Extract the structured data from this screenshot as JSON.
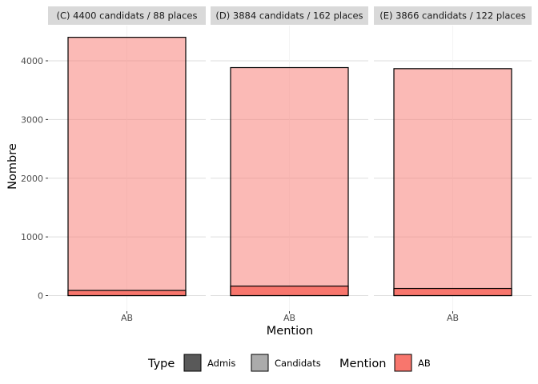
{
  "chart_data": {
    "type": "bar",
    "xlabel": "Mention",
    "ylabel": "Nombre",
    "ylim": [
      0,
      4500
    ],
    "yticks": [
      0,
      1000,
      2000,
      3000,
      4000
    ],
    "grid": true,
    "legend_placement": "bottom",
    "panels": [
      {
        "title": "(C) 4400 candidats / 88 places",
        "category": "AB",
        "candidats": 4400,
        "admis": 88
      },
      {
        "title": "(D) 3884 candidats / 162 places",
        "category": "AB",
        "candidats": 3884,
        "admis": 162
      },
      {
        "title": "(E) 3866 candidats / 122 places",
        "category": "AB",
        "candidats": 3866,
        "admis": 122
      }
    ]
  },
  "legend": {
    "type_title": "Type",
    "type_items": [
      {
        "label": "Admis",
        "color": "#595959"
      },
      {
        "label": "Candidats",
        "color": "#ababab"
      }
    ],
    "mention_title": "Mention",
    "mention_items": [
      {
        "label": "AB",
        "color": "#f8766d"
      }
    ]
  },
  "colors": {
    "strip_bg": "#d9d9d9",
    "grid": "#dedede",
    "candidats_fill": "#f8766d",
    "admis_fill": "#f8766d"
  }
}
